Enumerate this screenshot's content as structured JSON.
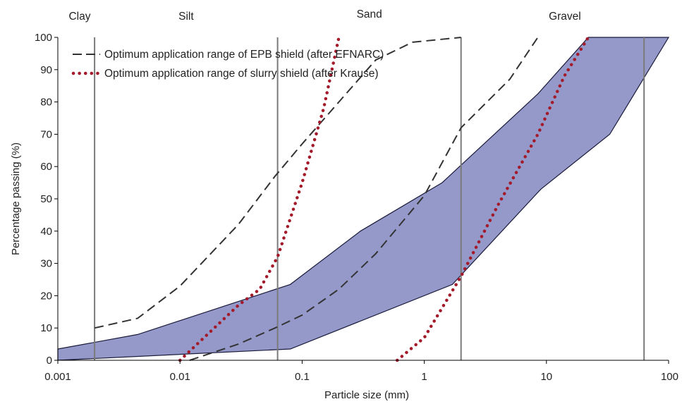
{
  "chart_data": {
    "type": "line",
    "xlabel": "Particle size (mm)",
    "ylabel": "Percentage passing (%)",
    "xscale": "log",
    "xlim": [
      0.001,
      100
    ],
    "ylim": [
      0,
      100
    ],
    "xticks": [
      0.001,
      0.01,
      0.1,
      1,
      10,
      100
    ],
    "xtick_labels": [
      "0.001",
      "0.01",
      "0.1",
      "1",
      "10",
      "100"
    ],
    "yticks": [
      0,
      10,
      20,
      30,
      40,
      50,
      60,
      70,
      80,
      90,
      100
    ],
    "ytick_labels": [
      "0",
      "10",
      "20",
      "30",
      "40",
      "50",
      "60",
      "70",
      "80",
      "90",
      "100"
    ],
    "grid": false,
    "legend_position": "top-left",
    "soil_classes": [
      {
        "label": "Clay",
        "boundary": 0.002
      },
      {
        "label": "Silt",
        "boundary": 0.063
      },
      {
        "label": "Sand",
        "boundary": 2
      },
      {
        "label": "Gravel",
        "boundary": 63
      }
    ],
    "band": {
      "fill": "#9599c9",
      "stroke": "#1a1a3a",
      "upper": [
        [
          0.001,
          3.5
        ],
        [
          0.0045,
          8
        ],
        [
          0.08,
          23.5
        ],
        [
          0.3,
          40
        ],
        [
          1.4,
          55
        ],
        [
          8.5,
          82.5
        ],
        [
          22,
          100
        ],
        [
          100,
          100
        ]
      ],
      "lower": [
        [
          0.001,
          0
        ],
        [
          0.08,
          3.5
        ],
        [
          1.7,
          23.5
        ],
        [
          9,
          53
        ],
        [
          33,
          70
        ],
        [
          100,
          100
        ]
      ]
    },
    "series": [
      {
        "name": "Optimum application range of EPB shield (after EFNARC)",
        "style": "dashed",
        "color": "#333333",
        "lines": [
          [
            [
              0.002,
              10
            ],
            [
              0.0045,
              13
            ],
            [
              0.01,
              23
            ],
            [
              0.03,
              42
            ],
            [
              0.06,
              57
            ],
            [
              0.1,
              67
            ],
            [
              0.2,
              80
            ],
            [
              0.4,
              93
            ],
            [
              0.8,
              98.5
            ],
            [
              2,
              100
            ]
          ],
          [
            [
              0.012,
              0
            ],
            [
              0.03,
              5
            ],
            [
              0.06,
              10
            ],
            [
              0.1,
              14
            ],
            [
              0.2,
              22
            ],
            [
              0.4,
              33
            ],
            [
              1,
              51
            ],
            [
              2,
              72
            ],
            [
              5,
              87
            ],
            [
              8.5,
              100
            ]
          ]
        ]
      },
      {
        "name": "Optimum application range of slurry shield (after Krause)",
        "style": "dotted",
        "color": "#a31a2a",
        "lines": [
          [
            [
              0.01,
              0
            ],
            [
              0.03,
              17
            ],
            [
              0.045,
              22
            ],
            [
              0.063,
              32
            ],
            [
              0.1,
              55
            ],
            [
              0.15,
              78
            ],
            [
              0.2,
              100
            ]
          ],
          [
            [
              0.6,
              0
            ],
            [
              1,
              7
            ],
            [
              2,
              26
            ],
            [
              4,
              48
            ],
            [
              8.5,
              70
            ],
            [
              14,
              88
            ],
            [
              22,
              100
            ]
          ]
        ]
      }
    ]
  }
}
